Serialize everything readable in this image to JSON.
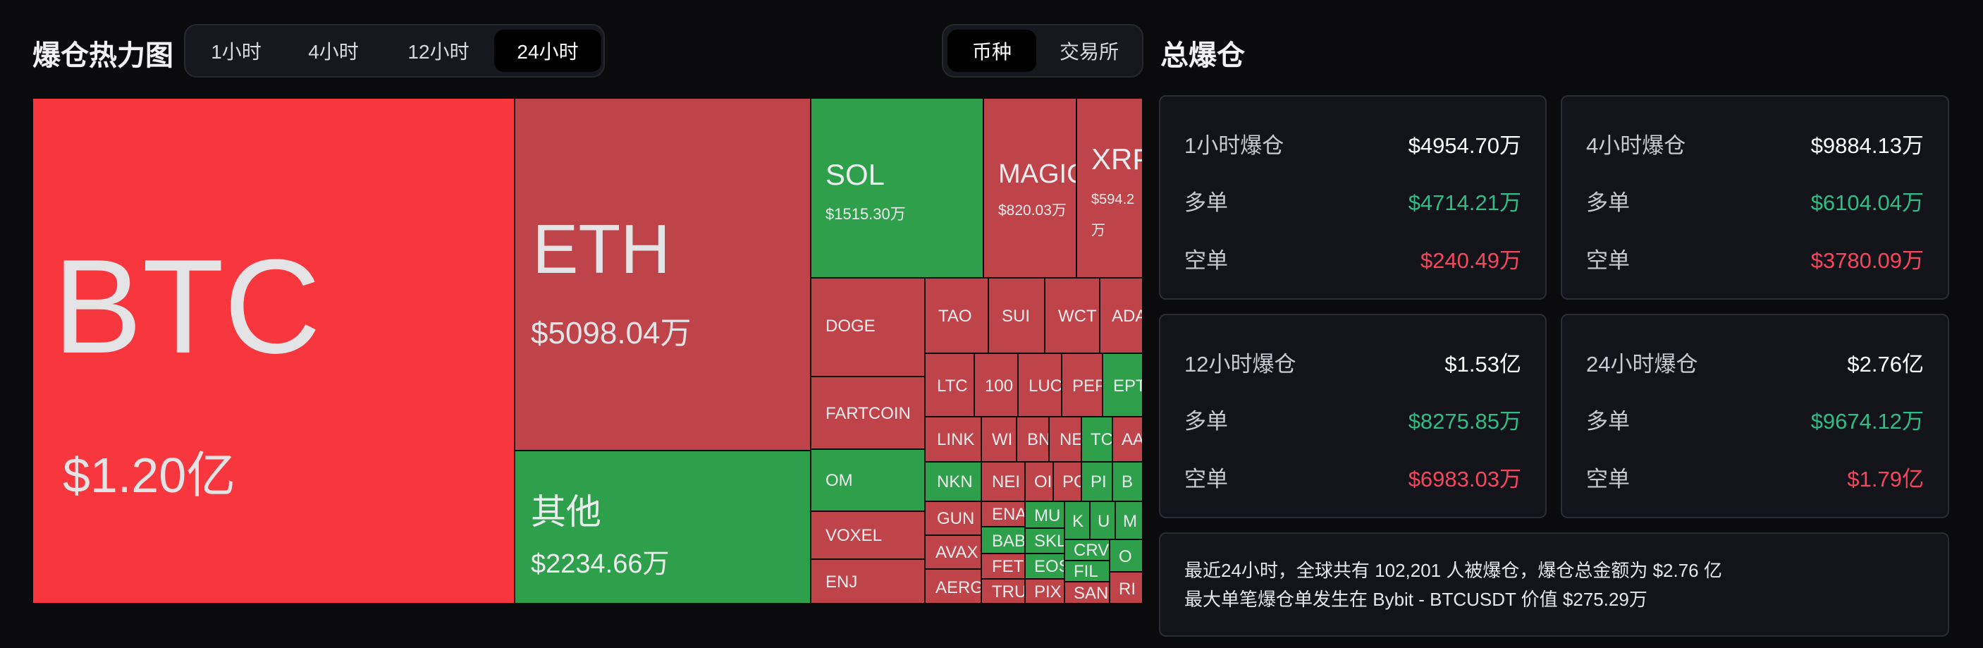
{
  "heatmap": {
    "title": "爆仓热力图",
    "time_tabs": [
      {
        "label": "1小时",
        "active": false
      },
      {
        "label": "4小时",
        "active": false
      },
      {
        "label": "12小时",
        "active": false
      },
      {
        "label": "24小时",
        "active": true
      }
    ],
    "group_tabs": [
      {
        "label": "币种",
        "active": true
      },
      {
        "label": "交易所",
        "active": false
      }
    ],
    "tiles": {
      "btc": {
        "name": "BTC",
        "value": "$1.20亿"
      },
      "eth": {
        "name": "ETH",
        "value": "$5098.04万"
      },
      "other": {
        "name": "其他",
        "value": "$2234.66万"
      },
      "sol": {
        "name": "SOL",
        "value": "$1515.30万"
      },
      "magic": {
        "name": "MAGIC",
        "value": "$820.03万"
      },
      "xrp": {
        "name": "XRP",
        "value": "$594.2",
        "value2": "万"
      },
      "small": {
        "doge": "DOGE",
        "fartcoin": "FARTCOIN",
        "om": "OM",
        "voxel": "VOXEL",
        "enj": "ENJ",
        "tao": "TAO",
        "sui": "SUI",
        "wct": "WCT",
        "ada": "ADA",
        "ltc": "LTC",
        "t100": "100",
        "luc": "LUC",
        "pep": "PEP",
        "ept": "EPT",
        "link": "LINK",
        "wi": "WI",
        "bn": "BN",
        "ne": "NE",
        "tc": "TC",
        "aa": "AA",
        "nkn": "NKN",
        "nei": "NEI",
        "ol": "OI",
        "pc": "PC",
        "pl": "PI",
        "b": "B",
        "gun": "GUN",
        "ena": "ENA",
        "mu": "MU",
        "k": "K",
        "u": "U",
        "m": "M",
        "avax": "AVAX",
        "bab": "BAB",
        "skl": "SKL",
        "crv": "CRV",
        "o": "O",
        "aerg": "AERG",
        "fet": "FET",
        "eos": "EOS",
        "fil": "FIL",
        "tru": "TRU",
        "pix": "PIX",
        "san": "SAN",
        "ri": "RI"
      }
    }
  },
  "summary": {
    "title": "总爆仓",
    "cards": [
      {
        "period": "1小时爆仓",
        "total": "$4954.70万",
        "long_label": "多单",
        "long": "$4714.21万",
        "short_label": "空单",
        "short": "$240.49万"
      },
      {
        "period": "4小时爆仓",
        "total": "$9884.13万",
        "long_label": "多单",
        "long": "$6104.04万",
        "short_label": "空单",
        "short": "$3780.09万"
      },
      {
        "period": "12小时爆仓",
        "total": "$1.53亿",
        "long_label": "多单",
        "long": "$8275.85万",
        "short_label": "空单",
        "short": "$6983.03万"
      },
      {
        "period": "24小时爆仓",
        "total": "$2.76亿",
        "long_label": "多单",
        "long": "$9674.12万",
        "short_label": "空单",
        "short": "$1.79亿"
      }
    ],
    "info_line1": "最近24小时，全球共有 102,201 人被爆仓，爆仓总金额为 $2.76 亿",
    "info_line2": "最大单笔爆仓单发生在 Bybit - BTCUSDT 价值 $275.29万"
  },
  "colors": {
    "long": "#2ebd85",
    "short": "#f6465d",
    "tile_red": "#bf444a",
    "tile_bright_red": "#f7363d",
    "tile_green": "#2ea04c"
  }
}
